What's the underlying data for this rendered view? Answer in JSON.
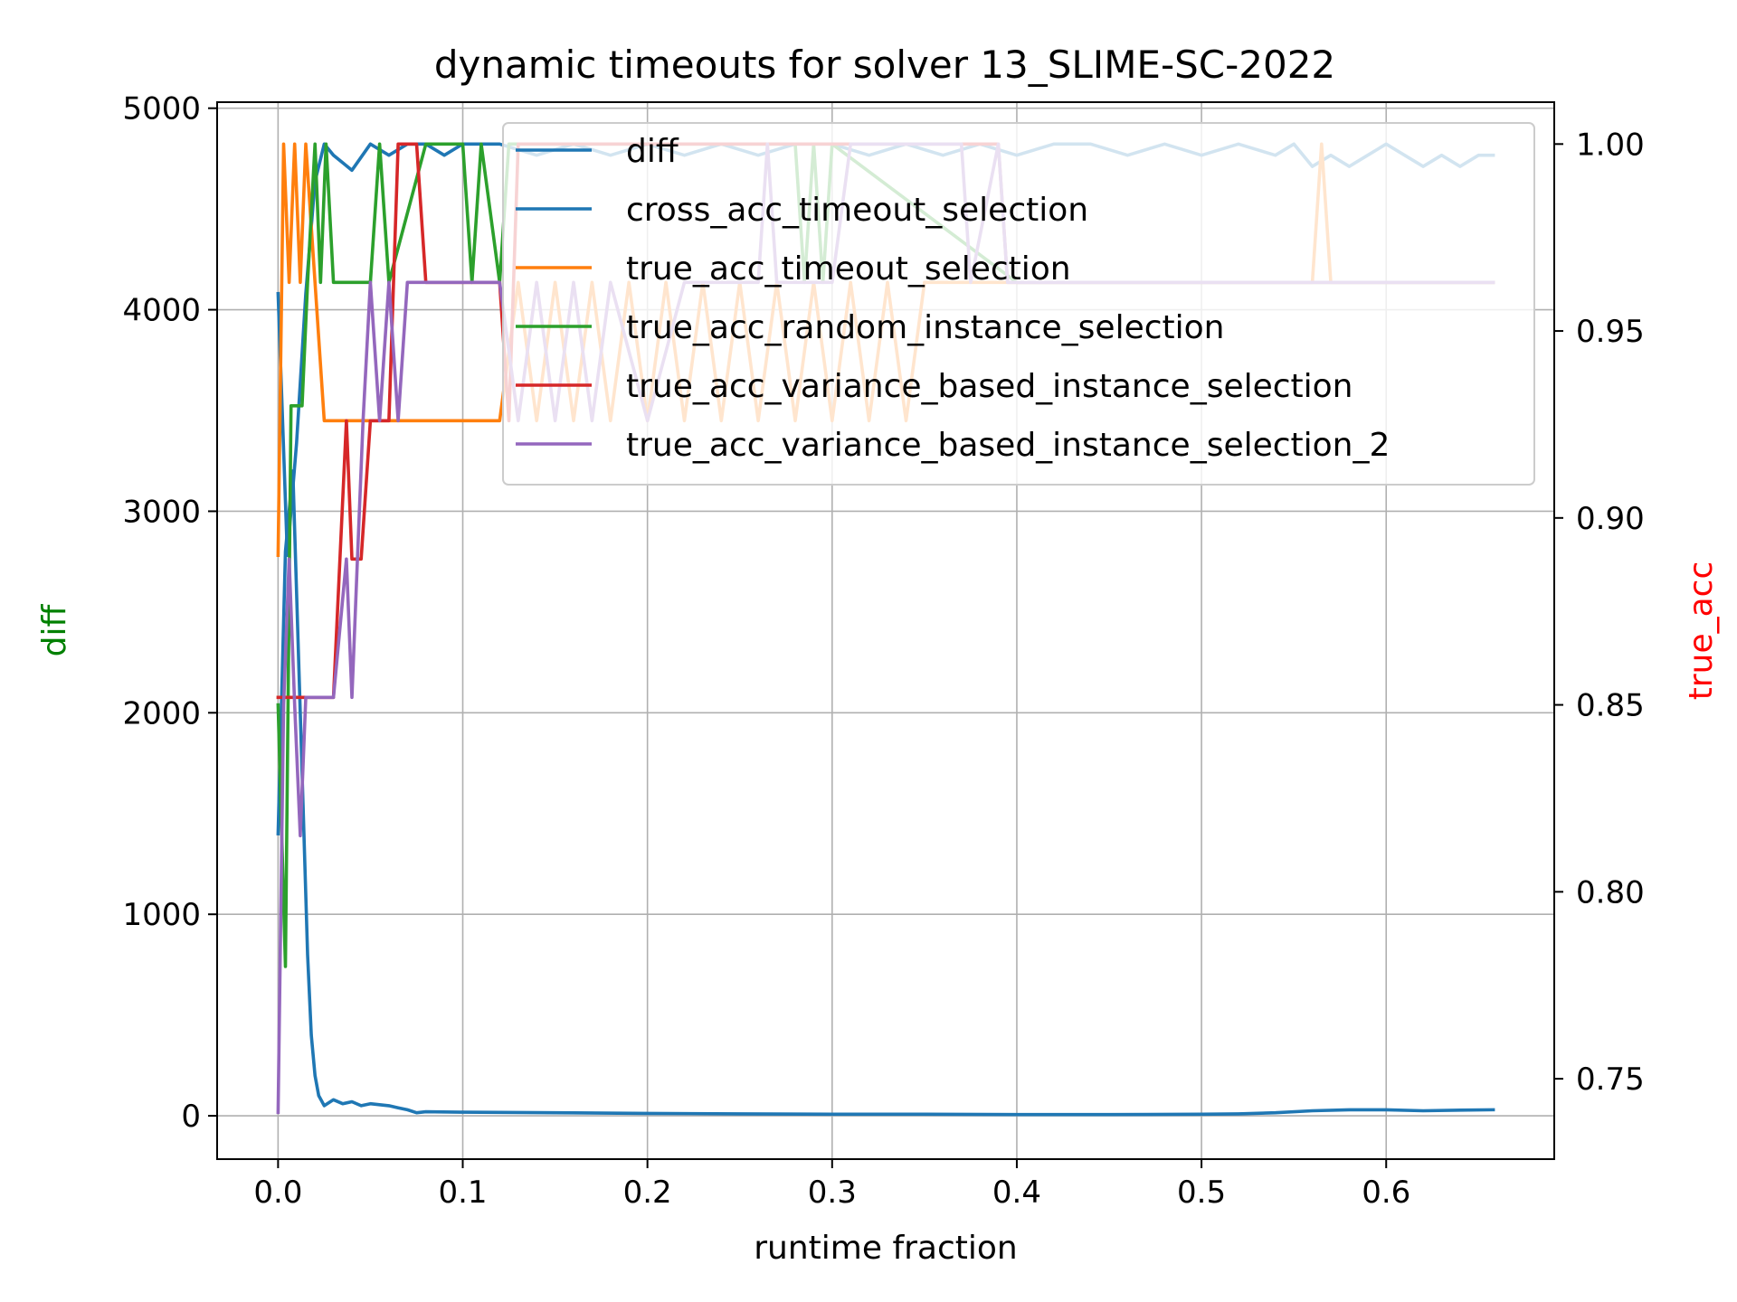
{
  "chart_data": {
    "type": "line",
    "title": "dynamic timeouts for solver 13_SLIME-SC-2022",
    "xlabel": "runtime fraction",
    "ylabel_left": "diff",
    "ylabel_right": "true_acc",
    "ylabel_left_color": "#008000",
    "ylabel_right_color": "#ff0000",
    "xlim": [
      -0.033,
      0.691
    ],
    "ylim_left": [
      -215,
      5030
    ],
    "ylim_right": [
      0.7285,
      1.0112
    ],
    "x_ticks": [
      0.0,
      0.1,
      0.2,
      0.3,
      0.4,
      0.5,
      0.6
    ],
    "x_tick_labels": [
      "0.0",
      "0.1",
      "0.2",
      "0.3",
      "0.4",
      "0.5",
      "0.6"
    ],
    "y_left_ticks": [
      0,
      1000,
      2000,
      3000,
      4000,
      5000
    ],
    "y_left_tick_labels": [
      "0",
      "1000",
      "2000",
      "3000",
      "4000",
      "5000"
    ],
    "y_right_ticks": [
      0.75,
      0.8,
      0.85,
      0.9,
      0.95,
      1.0
    ],
    "y_right_tick_labels": [
      "0.75",
      "0.80",
      "0.85",
      "0.90",
      "0.95",
      "1.00"
    ],
    "grid": true,
    "legend_position": "top-right",
    "series": [
      {
        "name": "diff",
        "axis": "left",
        "color": "#1f77b4",
        "x": [
          0.0,
          0.004,
          0.008,
          0.012,
          0.016,
          0.018,
          0.02,
          0.022,
          0.025,
          0.03,
          0.035,
          0.04,
          0.045,
          0.05,
          0.055,
          0.06,
          0.065,
          0.07,
          0.075,
          0.08,
          0.1,
          0.15,
          0.2,
          0.25,
          0.3,
          0.35,
          0.4,
          0.45,
          0.5,
          0.52,
          0.54,
          0.56,
          0.58,
          0.6,
          0.62,
          0.64,
          0.658
        ],
        "y": [
          1400,
          2800,
          3200,
          2000,
          800,
          400,
          200,
          100,
          50,
          80,
          60,
          70,
          50,
          60,
          55,
          50,
          40,
          30,
          15,
          20,
          18,
          15,
          12,
          10,
          8,
          8,
          6,
          6,
          8,
          10,
          15,
          25,
          30,
          30,
          25,
          28,
          30
        ]
      },
      {
        "name": "cross_acc_timeout_selection",
        "axis": "right",
        "color": "#1f77b4",
        "x": [
          0.0,
          0.005,
          0.01,
          0.015,
          0.02,
          0.025,
          0.03,
          0.04,
          0.05,
          0.06,
          0.07,
          0.08,
          0.09,
          0.1,
          0.12,
          0.14,
          0.16,
          0.18,
          0.2,
          0.22,
          0.24,
          0.26,
          0.28,
          0.3,
          0.32,
          0.34,
          0.36,
          0.38,
          0.4,
          0.42,
          0.44,
          0.46,
          0.48,
          0.5,
          0.52,
          0.54,
          0.55,
          0.56,
          0.57,
          0.58,
          0.59,
          0.6,
          0.61,
          0.62,
          0.63,
          0.64,
          0.65,
          0.658
        ],
        "y": [
          0.96,
          0.89,
          0.92,
          0.96,
          0.99,
          1.0,
          0.997,
          0.993,
          1.0,
          0.997,
          1.0,
          1.0,
          0.997,
          1.0,
          1.0,
          0.997,
          1.0,
          0.997,
          1.0,
          0.997,
          1.0,
          0.997,
          1.0,
          1.0,
          0.997,
          1.0,
          0.997,
          1.0,
          0.997,
          1.0,
          1.0,
          0.997,
          1.0,
          0.997,
          1.0,
          0.997,
          1.0,
          0.994,
          0.997,
          0.994,
          0.997,
          1.0,
          0.997,
          0.994,
          0.997,
          0.994,
          0.997,
          0.997
        ]
      },
      {
        "name": "true_acc_timeout_selection",
        "axis": "right",
        "color": "#ff7f0e",
        "x": [
          0.0,
          0.003,
          0.006,
          0.009,
          0.012,
          0.015,
          0.02,
          0.025,
          0.04,
          0.06,
          0.08,
          0.1,
          0.12,
          0.13,
          0.14,
          0.15,
          0.16,
          0.17,
          0.18,
          0.19,
          0.2,
          0.21,
          0.22,
          0.23,
          0.24,
          0.25,
          0.26,
          0.27,
          0.28,
          0.29,
          0.3,
          0.31,
          0.32,
          0.33,
          0.34,
          0.35,
          0.36,
          0.37,
          0.38,
          0.39,
          0.4,
          0.5,
          0.56,
          0.565,
          0.57,
          0.575,
          0.6,
          0.658
        ],
        "y": [
          0.89,
          1.0,
          0.963,
          1.0,
          0.963,
          1.0,
          0.963,
          0.926,
          0.926,
          0.926,
          0.926,
          0.926,
          0.926,
          0.963,
          0.926,
          0.963,
          0.926,
          0.963,
          0.926,
          0.963,
          0.926,
          0.963,
          0.926,
          0.963,
          0.926,
          0.963,
          0.926,
          0.963,
          0.926,
          0.963,
          0.926,
          0.963,
          0.926,
          0.963,
          0.926,
          0.963,
          0.963,
          0.963,
          0.963,
          0.963,
          0.963,
          0.963,
          0.963,
          1.0,
          0.963,
          0.963,
          0.963,
          0.963
        ]
      },
      {
        "name": "true_acc_random_instance_selection",
        "axis": "right",
        "color": "#2ca02c",
        "x": [
          0.0,
          0.004,
          0.007,
          0.01,
          0.013,
          0.016,
          0.02,
          0.023,
          0.026,
          0.03,
          0.035,
          0.05,
          0.055,
          0.06,
          0.08,
          0.1,
          0.105,
          0.11,
          0.12,
          0.125,
          0.13,
          0.2,
          0.28,
          0.285,
          0.29,
          0.295,
          0.3,
          0.4,
          0.658
        ],
        "y": [
          0.85,
          0.78,
          0.93,
          0.93,
          0.93,
          0.963,
          1.0,
          0.963,
          1.0,
          0.963,
          0.963,
          0.963,
          1.0,
          0.963,
          1.0,
          1.0,
          0.963,
          1.0,
          0.963,
          1.0,
          1.0,
          1.0,
          1.0,
          0.963,
          1.0,
          0.963,
          1.0,
          0.963,
          0.963
        ]
      },
      {
        "name": "true_acc_variance_based_instance_selection",
        "axis": "right",
        "color": "#d62728",
        "x": [
          0.0,
          0.01,
          0.02,
          0.03,
          0.037,
          0.04,
          0.045,
          0.05,
          0.06,
          0.065,
          0.07,
          0.075,
          0.08,
          0.1,
          0.12,
          0.125,
          0.13,
          0.2,
          0.3,
          0.39,
          0.395,
          0.4,
          0.658
        ],
        "y": [
          0.852,
          0.852,
          0.852,
          0.852,
          0.926,
          0.889,
          0.889,
          0.926,
          0.926,
          1.0,
          1.0,
          1.0,
          0.963,
          0.963,
          0.963,
          0.926,
          1.0,
          1.0,
          1.0,
          1.0,
          0.963,
          0.963,
          0.963
        ]
      },
      {
        "name": "true_acc_variance_based_instance_selection_2",
        "axis": "right",
        "color": "#9467bd",
        "x": [
          0.0,
          0.003,
          0.006,
          0.009,
          0.012,
          0.015,
          0.03,
          0.037,
          0.04,
          0.043,
          0.046,
          0.05,
          0.055,
          0.06,
          0.065,
          0.07,
          0.075,
          0.08,
          0.1,
          0.12,
          0.13,
          0.14,
          0.15,
          0.16,
          0.17,
          0.18,
          0.2,
          0.22,
          0.23,
          0.26,
          0.265,
          0.27,
          0.3,
          0.31,
          0.37,
          0.375,
          0.39,
          0.395,
          0.4,
          0.658
        ],
        "y": [
          0.741,
          0.85,
          0.889,
          0.85,
          0.815,
          0.852,
          0.852,
          0.889,
          0.852,
          0.889,
          0.926,
          0.963,
          0.926,
          0.963,
          0.926,
          0.963,
          0.963,
          0.963,
          0.963,
          0.963,
          0.926,
          0.963,
          0.926,
          0.963,
          0.926,
          0.963,
          0.926,
          0.963,
          0.963,
          0.963,
          1.0,
          0.963,
          0.963,
          1.0,
          1.0,
          0.963,
          1.0,
          0.963,
          0.963,
          0.963
        ]
      }
    ]
  }
}
